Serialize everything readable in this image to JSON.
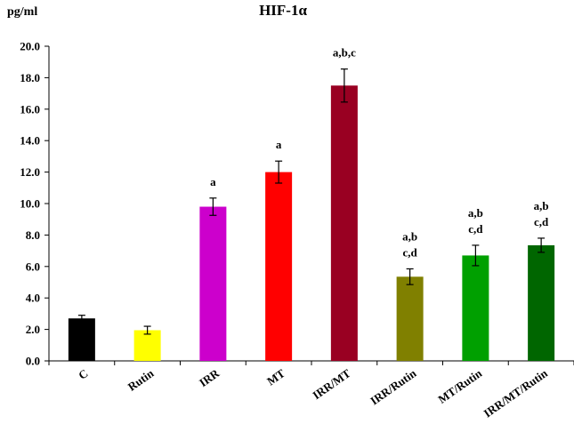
{
  "chart_data": {
    "type": "bar",
    "title": "HIF-1α",
    "ylabel": "pg/ml",
    "xlabel": "",
    "ylim": [
      0,
      20
    ],
    "yticks": [
      "0.0",
      "2.0",
      "4.0",
      "6.0",
      "8.0",
      "10.0",
      "12.0",
      "14.0",
      "16.0",
      "18.0",
      "20.0"
    ],
    "grid": false,
    "legend": "none",
    "categories": [
      "C",
      "Rutin",
      "IRR",
      "MT",
      "IRR/MT",
      "IRR/Rutin",
      "MT/Rutin",
      "IRR/MT/Rutin"
    ],
    "values": [
      2.7,
      1.95,
      9.8,
      12.0,
      17.5,
      5.35,
      6.7,
      7.35
    ],
    "errors": [
      0.2,
      0.25,
      0.55,
      0.7,
      1.05,
      0.5,
      0.65,
      0.45
    ],
    "colors": [
      "#000000",
      "#ffff00",
      "#cc00cc",
      "#ff0000",
      "#990022",
      "#808000",
      "#00a000",
      "#006600"
    ],
    "significance": [
      [],
      [],
      [
        "a"
      ],
      [
        "a"
      ],
      [
        "a,b,c"
      ],
      [
        "a,b",
        "c,d"
      ],
      [
        "a,b",
        "c,d"
      ],
      [
        "a,b",
        "c,d"
      ]
    ]
  }
}
